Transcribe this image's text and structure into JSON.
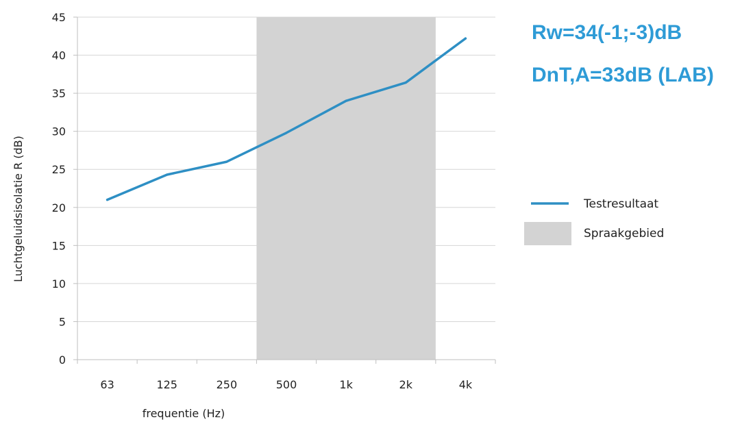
{
  "chart_data": {
    "type": "line",
    "title": "",
    "xlabel": "frequentie (Hz)",
    "ylabel": "Luchtgeluidsisolatie  R (dB)",
    "categories": [
      "63",
      "125",
      "250",
      "500",
      "1k",
      "2k",
      "4k"
    ],
    "ylim": [
      0,
      45
    ],
    "yticks": [
      0,
      5,
      10,
      15,
      20,
      25,
      30,
      35,
      40,
      45
    ],
    "grid": "horizontal",
    "legend_position": "right",
    "series": [
      {
        "name": "Testresultaat",
        "color": "#2e8fc4",
        "values": [
          21,
          24.3,
          26,
          29.8,
          34,
          36.4,
          42.2
        ]
      }
    ],
    "shaded_region": {
      "name": "Spraakgebied",
      "color": "#d3d3d3",
      "from_category": "500",
      "to_category": "2k",
      "full_band": true
    },
    "annotations": [
      "Rw=34(-1;-3)dB",
      "DnT,A=33dB (LAB)"
    ],
    "annotation_color": "#2e9bd6"
  }
}
